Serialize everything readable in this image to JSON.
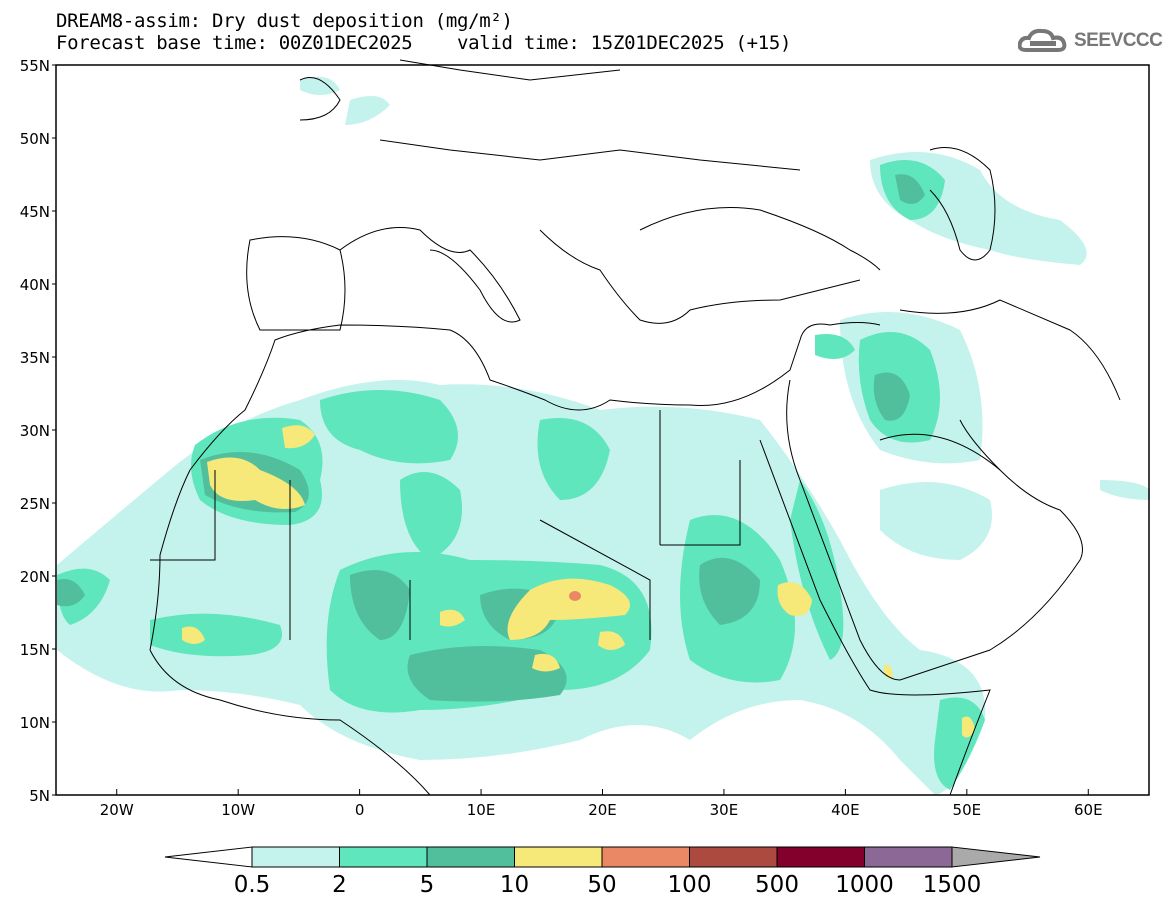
{
  "title": "DREAM8-assim: Dry dust deposition (mg/m²)",
  "subtitle": "Forecast base time: 00Z01DEC2025    valid time: 15Z01DEC2025 (+15)",
  "logo": {
    "text": "SEEVCCC",
    "icon": "cloud-icon"
  },
  "map": {
    "lon_range": [
      -25,
      65
    ],
    "lat_range": [
      5,
      55
    ],
    "lat_ticks": [
      {
        "value": 55,
        "label": "55N"
      },
      {
        "value": 50,
        "label": "50N"
      },
      {
        "value": 45,
        "label": "45N"
      },
      {
        "value": 40,
        "label": "40N"
      },
      {
        "value": 35,
        "label": "35N"
      },
      {
        "value": 30,
        "label": "30N"
      },
      {
        "value": 25,
        "label": "25N"
      },
      {
        "value": 20,
        "label": "20N"
      },
      {
        "value": 15,
        "label": "15N"
      },
      {
        "value": 10,
        "label": "10N"
      },
      {
        "value": 5,
        "label": "5N"
      }
    ],
    "lon_ticks": [
      {
        "value": -20,
        "label": "20W"
      },
      {
        "value": -10,
        "label": "10W"
      },
      {
        "value": 0,
        "label": "0"
      },
      {
        "value": 10,
        "label": "10E"
      },
      {
        "value": 20,
        "label": "20E"
      },
      {
        "value": 30,
        "label": "30E"
      },
      {
        "value": 40,
        "label": "40E"
      },
      {
        "value": 50,
        "label": "50E"
      },
      {
        "value": 60,
        "label": "60E"
      }
    ]
  },
  "colorbar": {
    "labels": [
      "0.5",
      "2",
      "5",
      "10",
      "50",
      "100",
      "500",
      "1000",
      "1500"
    ],
    "colors": [
      "#c4f2ec",
      "#5fe6bd",
      "#52bf9c",
      "#f7e87a",
      "#ea8865",
      "#ad4a40",
      "#84002c",
      "#8c6896"
    ],
    "under_color": "#ffffff",
    "over_color": "#aaaaaa"
  }
}
